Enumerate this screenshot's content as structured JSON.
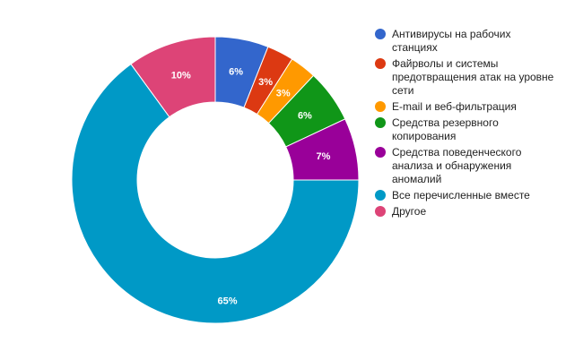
{
  "chart_data": {
    "type": "pie",
    "donut": true,
    "title": "",
    "legend_position": "right",
    "categories": [
      "Антивирусы на рабочих станциях",
      "Файрволы и системы предотвращения атак на уровне сети",
      "E-mail и веб-фильтрация",
      "Средства резервного копирования",
      "Средства поведенческого анализа и обнаружения аномалий",
      "Все перечисленные вместе",
      "Другое"
    ],
    "values": [
      6,
      3,
      3,
      6,
      7,
      65,
      10
    ],
    "labels": [
      "6%",
      "3%",
      "3%",
      "6%",
      "7%",
      "65%",
      "10%"
    ],
    "colors": [
      "#3366cc",
      "#dc3912",
      "#ff9900",
      "#109618",
      "#990099",
      "#0099c6",
      "#dd4477"
    ],
    "legend_lines": [
      [
        "Антивирусы на рабочих",
        "станциях"
      ],
      [
        "Файрволы и системы",
        "предотвращения атак на уровне",
        "сети"
      ],
      [
        "E-mail и веб-фильтрация"
      ],
      [
        "Средства резервного",
        "копирования"
      ],
      [
        "Средства поведенческого",
        "анализа и обнаружения",
        "аномалий"
      ],
      [
        "Все перечисленные вместе"
      ],
      [
        "Другое"
      ]
    ]
  }
}
